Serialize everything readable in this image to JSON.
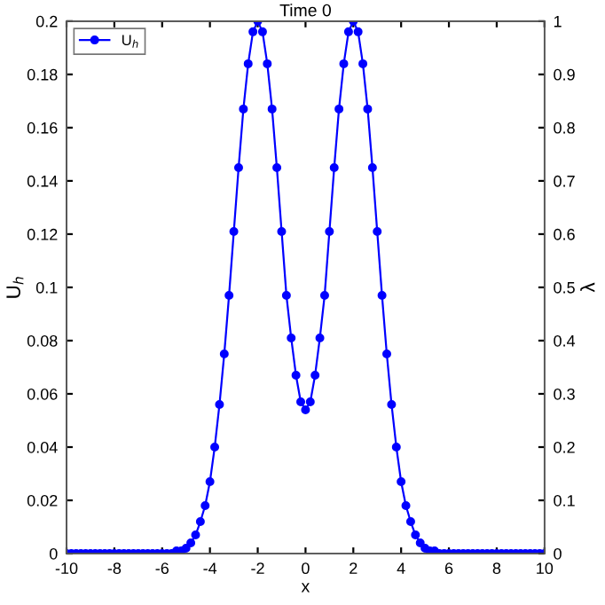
{
  "chart_data": {
    "type": "line",
    "title": "Time 0",
    "xlabel": "x",
    "ylabel": "U$_{h}$",
    "y2label": "λ",
    "xlim": [
      -10,
      10
    ],
    "xticks": [
      -10,
      -8,
      -6,
      -4,
      -2,
      0,
      2,
      4,
      6,
      8,
      10
    ],
    "ylim": [
      0,
      0.2
    ],
    "yticks": [
      0,
      0.02,
      0.04,
      0.06,
      0.08,
      0.1,
      0.12,
      0.14,
      0.16,
      0.18,
      0.2
    ],
    "y2lim": [
      0,
      1
    ],
    "y2ticks": [
      0,
      0.1,
      0.2,
      0.3,
      0.4,
      0.5,
      0.6,
      0.7,
      0.8,
      0.9,
      1
    ],
    "x": [
      -10,
      -9.8,
      -9.6,
      -9.4,
      -9.2,
      -9,
      -8.8,
      -8.6,
      -8.4,
      -8.2,
      -8,
      -7.8,
      -7.6,
      -7.4,
      -7.2,
      -7,
      -6.8,
      -6.6,
      -6.4,
      -6.2,
      -6,
      -5.8,
      -5.6,
      -5.4,
      -5.2,
      -5,
      -4.8,
      -4.6,
      -4.4,
      -4.2,
      -4,
      -3.8,
      -3.6,
      -3.4,
      -3.2,
      -3,
      -2.8,
      -2.6,
      -2.4,
      -2.2,
      -2,
      -1.8,
      -1.6,
      -1.4,
      -1.2,
      -1,
      -0.8,
      -0.6,
      -0.4,
      -0.2,
      0,
      0.2,
      0.4,
      0.6,
      0.8,
      1,
      1.2,
      1.4,
      1.6,
      1.8,
      2,
      2.2,
      2.4,
      2.6,
      2.8,
      3,
      3.2,
      3.4,
      3.6,
      3.8,
      4,
      4.2,
      4.4,
      4.6,
      4.8,
      5,
      5.2,
      5.4,
      5.6,
      5.8,
      6,
      6.2,
      6.4,
      6.6,
      6.8,
      7,
      7.2,
      7.4,
      7.6,
      7.8,
      8,
      8.2,
      8.4,
      8.6,
      8.8,
      9,
      9.2,
      9.4,
      9.6,
      9.8,
      10
    ],
    "series": [
      {
        "name": "U$_{h}$",
        "color": "#0000ff",
        "values": [
          0,
          0,
          0,
          0,
          0,
          0,
          0,
          0,
          0,
          0,
          0,
          0,
          0,
          0,
          0,
          0,
          0,
          0,
          0,
          0,
          0,
          0,
          0,
          0.001,
          0.001,
          0.002,
          0.004,
          0.007,
          0.012,
          0.018,
          0.027,
          0.04,
          0.056,
          0.075,
          0.097,
          0.121,
          0.145,
          0.167,
          0.184,
          0.196,
          0.2,
          0.196,
          0.184,
          0.167,
          0.145,
          0.121,
          0.097,
          0.081,
          0.067,
          0.057,
          0.054,
          0.057,
          0.067,
          0.081,
          0.097,
          0.121,
          0.145,
          0.167,
          0.184,
          0.196,
          0.2,
          0.196,
          0.184,
          0.167,
          0.145,
          0.121,
          0.097,
          0.075,
          0.056,
          0.04,
          0.027,
          0.018,
          0.012,
          0.007,
          0.004,
          0.002,
          0.001,
          0.001,
          0,
          0,
          0,
          0,
          0,
          0,
          0,
          0,
          0,
          0,
          0,
          0,
          0,
          0,
          0,
          0,
          0,
          0,
          0,
          0,
          0,
          0,
          0
        ]
      }
    ],
    "legend": "top left",
    "marker": "circle",
    "line_style": "solid",
    "grid": false
  }
}
